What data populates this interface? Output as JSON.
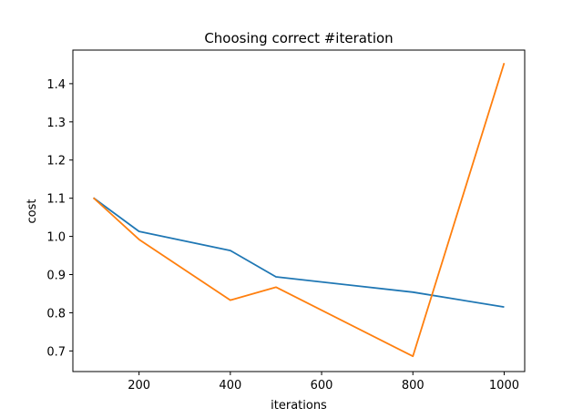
{
  "chart_data": {
    "type": "line",
    "title": "Choosing correct #iteration",
    "xlabel": "iterations",
    "ylabel": "cost",
    "xlim": [
      55,
      1045
    ],
    "ylim": [
      0.646,
      1.488
    ],
    "xticks": [
      200,
      400,
      600,
      800,
      1000
    ],
    "yticks": [
      0.7,
      0.8,
      0.9,
      1.0,
      1.1,
      1.2,
      1.3,
      1.4
    ],
    "xtick_labels": [
      "200",
      "400",
      "600",
      "800",
      "1000"
    ],
    "ytick_labels": [
      "0.7",
      "0.8",
      "0.9",
      "1.0",
      "1.1",
      "1.2",
      "1.3",
      "1.4"
    ],
    "grid": false,
    "series": [
      {
        "color": "#1f77b4",
        "x": [
          100,
          200,
          400,
          500,
          800,
          1000
        ],
        "y": [
          1.101,
          1.013,
          0.963,
          0.894,
          0.854,
          0.815
        ]
      },
      {
        "color": "#ff7f0e",
        "x": [
          100,
          200,
          400,
          500,
          800,
          1000
        ],
        "y": [
          1.101,
          0.992,
          0.833,
          0.867,
          0.686,
          1.454
        ]
      }
    ]
  }
}
